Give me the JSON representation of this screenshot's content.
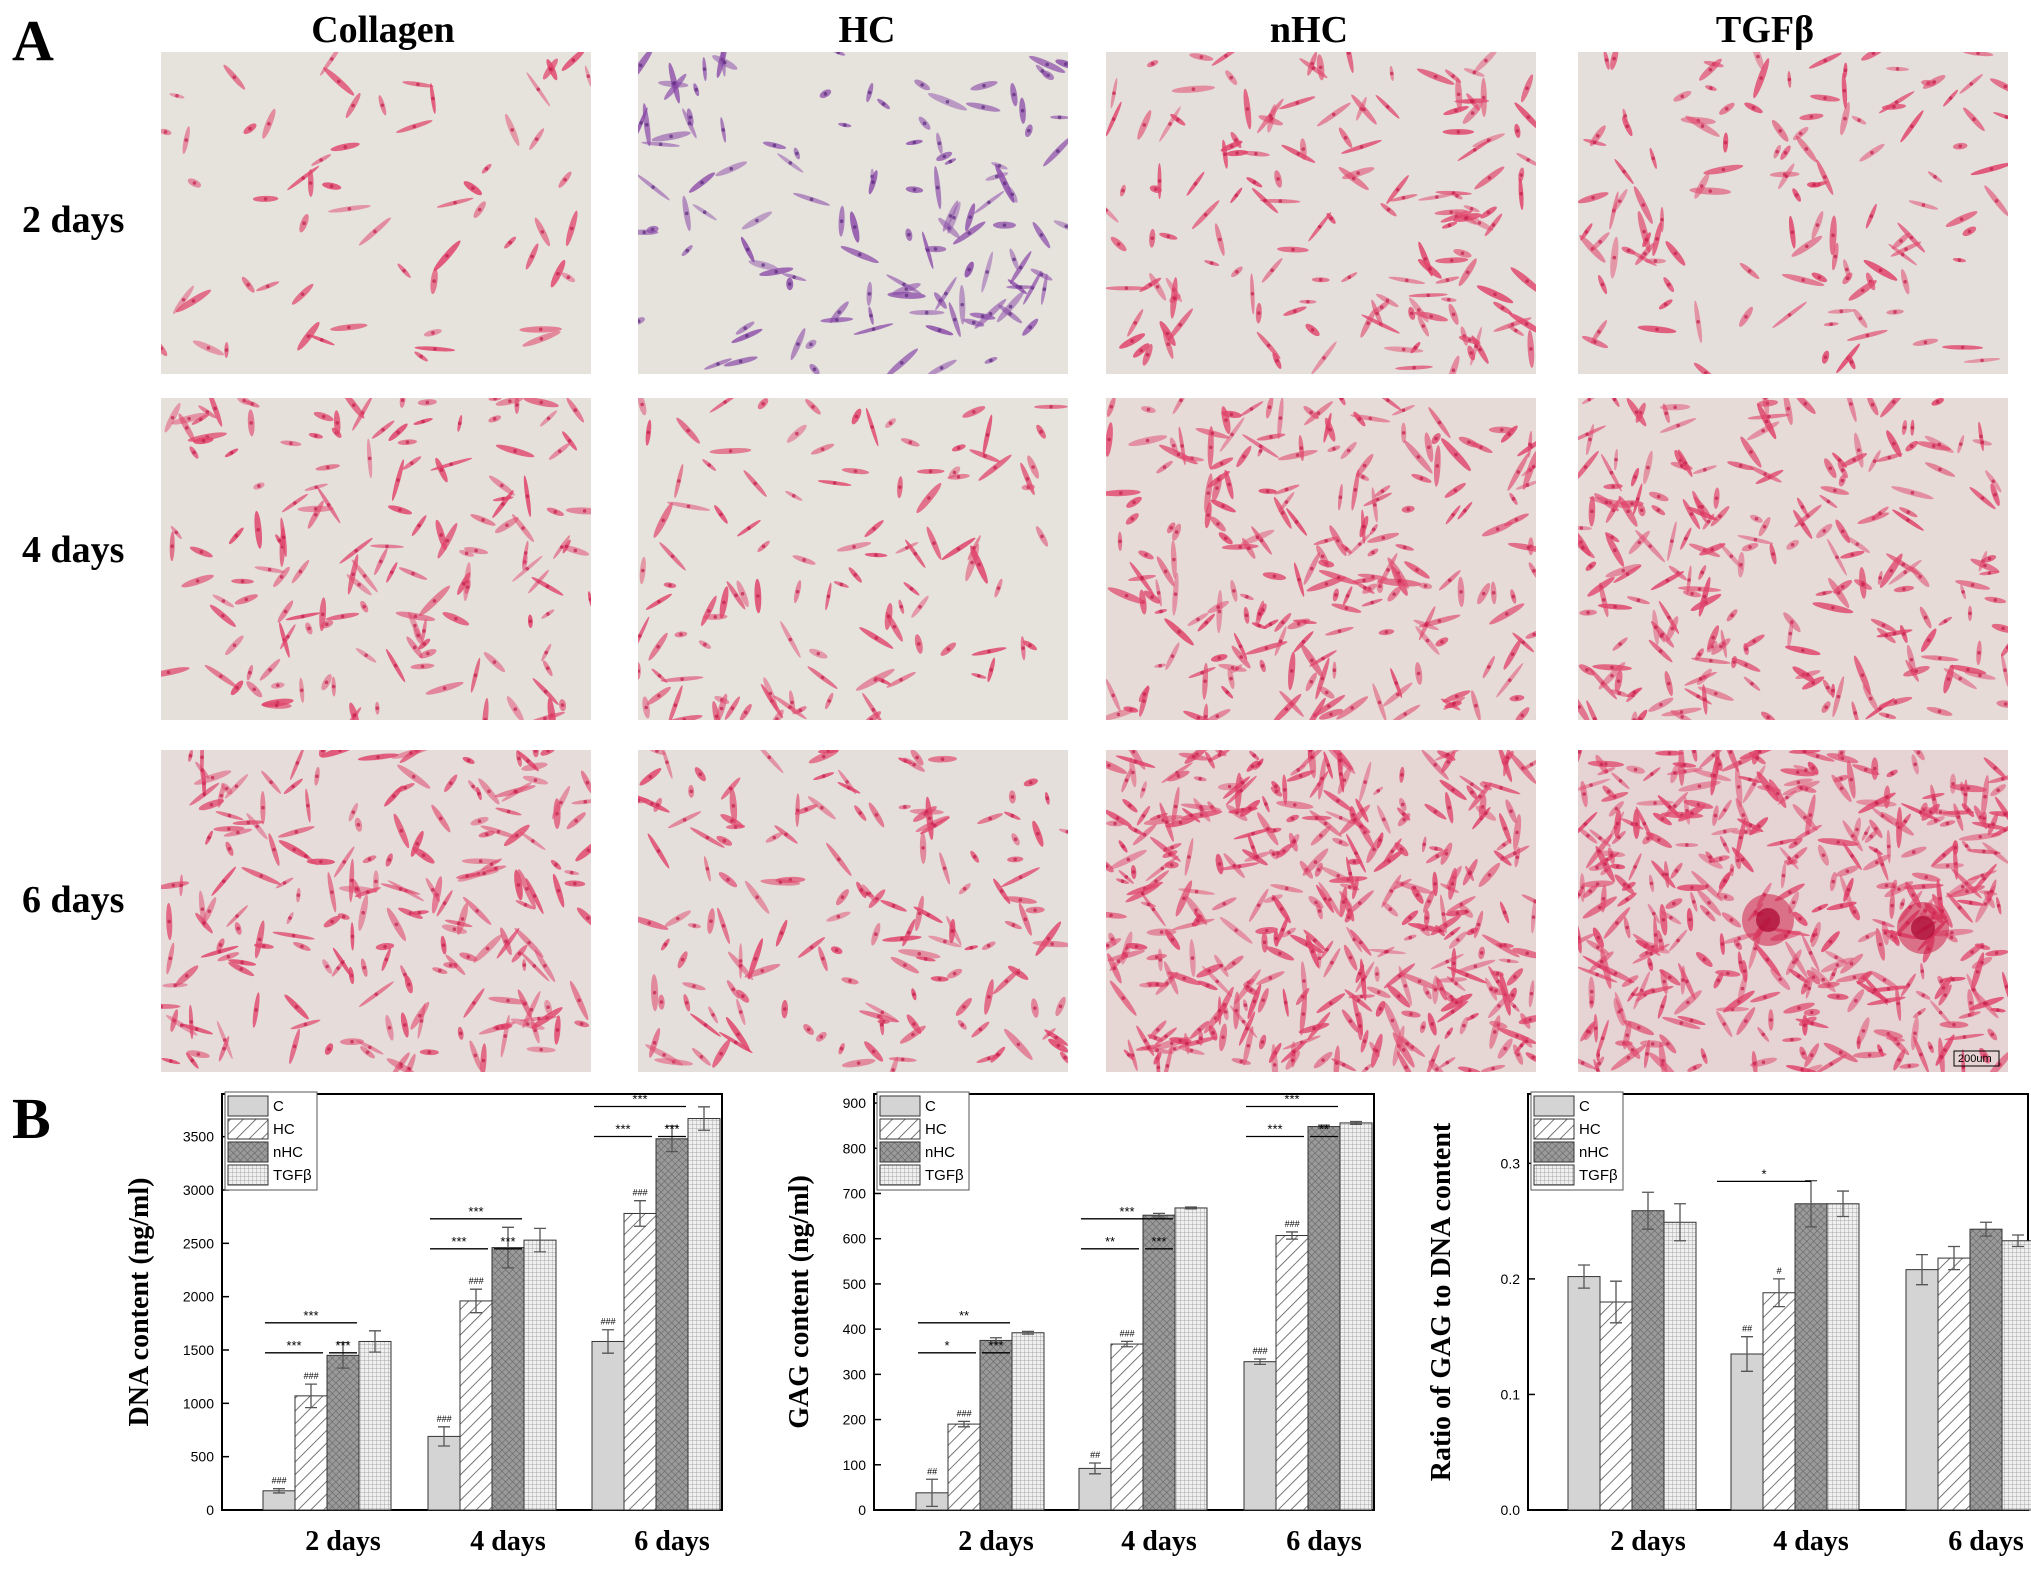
{
  "panel_a": {
    "letter": "A",
    "columns": [
      "Collagen",
      "HC",
      "nHC",
      "TGFβ"
    ],
    "rows": [
      "2 days",
      "4 days",
      "6 days"
    ],
    "scale_bar": "200um"
  },
  "panel_b": {
    "letter": "B"
  },
  "colors": {
    "stain_pink": "#e0436a",
    "stain_violet": "#8a4aa8",
    "background": "#e6e2dc"
  },
  "chart_data": [
    {
      "type": "bar",
      "categories": [
        "2 days",
        "4 days",
        "6 days"
      ],
      "ylabel": "DNA content (ng/ml)",
      "ylim": [
        0,
        3900
      ],
      "yticks": [
        0,
        500,
        1000,
        1500,
        2000,
        2500,
        3000,
        3500
      ],
      "series": [
        {
          "name": "C",
          "values": [
            180,
            690,
            1580
          ],
          "errors": [
            20,
            90,
            110
          ]
        },
        {
          "name": "HC",
          "values": [
            1070,
            1960,
            2780
          ],
          "errors": [
            110,
            110,
            120
          ]
        },
        {
          "name": "nHC",
          "values": [
            1450,
            2460,
            3480
          ],
          "errors": [
            120,
            190,
            120
          ]
        },
        {
          "name": "TGFβ",
          "values": [
            1580,
            2530,
            3670
          ],
          "errors": [
            100,
            110,
            110
          ]
        }
      ],
      "bar_labels": {
        "C": [
          "###",
          "###",
          "###"
        ],
        "HC": [
          "###",
          "###",
          "###"
        ]
      },
      "significance": [
        [
          "***",
          "***",
          "***"
        ],
        [
          "***",
          "***",
          "***"
        ],
        [
          "***",
          "***",
          "***"
        ]
      ],
      "legend": "top-left",
      "grid": false
    },
    {
      "type": "bar",
      "categories": [
        "2 days",
        "4 days",
        "6 days"
      ],
      "ylabel": "GAG content (ng/ml)",
      "ylim": [
        0,
        920
      ],
      "yticks": [
        0,
        100,
        200,
        300,
        400,
        500,
        600,
        700,
        800,
        900
      ],
      "series": [
        {
          "name": "C",
          "values": [
            38,
            92,
            328
          ],
          "errors": [
            30,
            12,
            6
          ]
        },
        {
          "name": "HC",
          "values": [
            190,
            367,
            607
          ],
          "errors": [
            6,
            6,
            8
          ]
        },
        {
          "name": "nHC",
          "values": [
            375,
            652,
            848
          ],
          "errors": [
            6,
            4,
            3
          ]
        },
        {
          "name": "TGFβ",
          "values": [
            392,
            668,
            856
          ],
          "errors": [
            3,
            2,
            3
          ]
        }
      ],
      "bar_labels": {
        "C": [
          "##",
          "##",
          "###"
        ],
        "HC": [
          "###",
          "###",
          "###"
        ]
      },
      "significance": [
        [
          "**",
          "*",
          "***"
        ],
        [
          "***",
          "**",
          "***"
        ],
        [
          "***",
          "***",
          "**"
        ]
      ],
      "legend": "top-left",
      "grid": false
    },
    {
      "type": "bar",
      "categories": [
        "2 days",
        "4 days",
        "6 days"
      ],
      "ylabel": "Ratio of GAG to DNA content",
      "ylim": [
        0,
        0.36
      ],
      "yticks": [
        "0.0",
        "0.1",
        "0.2",
        "0.3"
      ],
      "series": [
        {
          "name": "C",
          "values": [
            0.202,
            0.135,
            0.208
          ],
          "errors": [
            0.01,
            0.015,
            0.013
          ]
        },
        {
          "name": "HC",
          "values": [
            0.18,
            0.188,
            0.218
          ],
          "errors": [
            0.018,
            0.012,
            0.01
          ]
        },
        {
          "name": "nHC",
          "values": [
            0.259,
            0.265,
            0.243
          ],
          "errors": [
            0.016,
            0.02,
            0.006
          ]
        },
        {
          "name": "TGFβ",
          "values": [
            0.249,
            0.265,
            0.233
          ],
          "errors": [
            0.016,
            0.011,
            0.005
          ]
        }
      ],
      "bar_labels": {
        "C": [
          "",
          "##",
          ""
        ],
        "HC": [
          "",
          "#",
          ""
        ]
      },
      "significance": [
        [],
        [
          "*"
        ],
        []
      ],
      "legend": "top-left",
      "grid": false
    }
  ]
}
